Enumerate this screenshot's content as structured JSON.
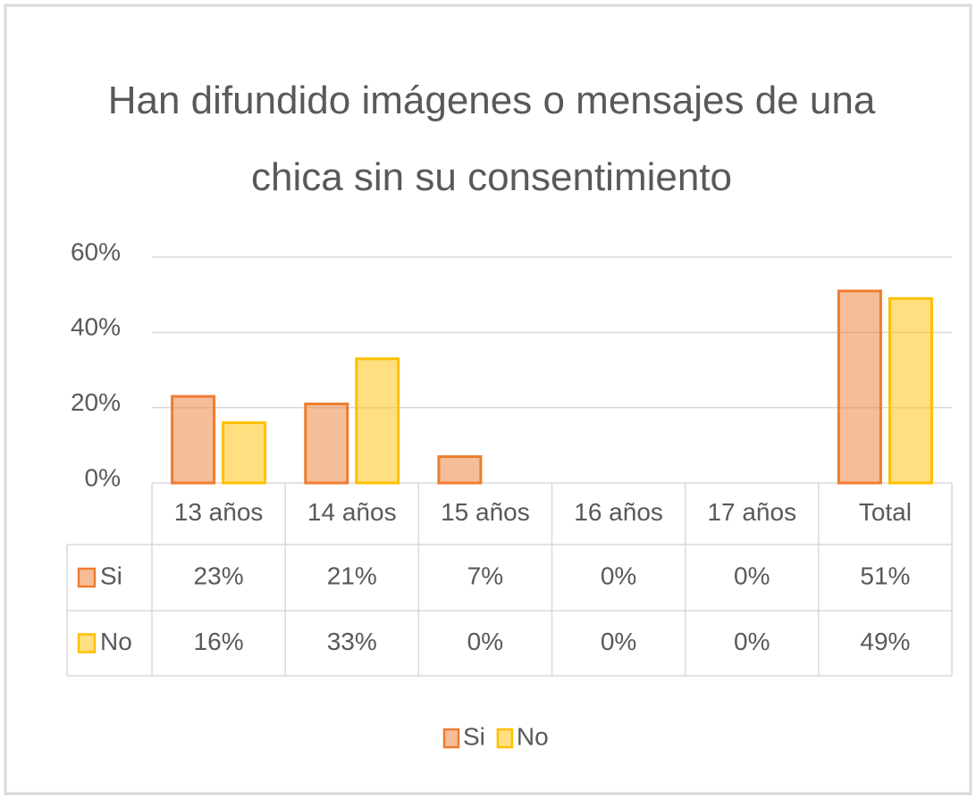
{
  "chart_data": {
    "type": "bar",
    "title": "Han difundido imágenes o mensajes de una chica sin su consentimiento",
    "categories": [
      "13 años",
      "14 años",
      "15 años",
      "16 años",
      "17 años",
      "Total"
    ],
    "series": [
      {
        "name": "Si",
        "color": "#ed7d31",
        "values": [
          23,
          21,
          7,
          0,
          0,
          51
        ],
        "value_labels": [
          "23%",
          "21%",
          "7%",
          "0%",
          "0%",
          "51%"
        ]
      },
      {
        "name": "No",
        "color": "#ffc000",
        "values": [
          16,
          33,
          0,
          0,
          0,
          49
        ],
        "value_labels": [
          "16%",
          "33%",
          "0%",
          "0%",
          "0%",
          "49%"
        ]
      }
    ],
    "ylim": [
      0,
      60
    ],
    "yticks": [
      {
        "value": 0,
        "label": "0%"
      },
      {
        "value": 20,
        "label": "20%"
      },
      {
        "value": 40,
        "label": "40%"
      },
      {
        "value": 60,
        "label": "60%"
      }
    ],
    "grid": true,
    "legend": "bottom"
  }
}
